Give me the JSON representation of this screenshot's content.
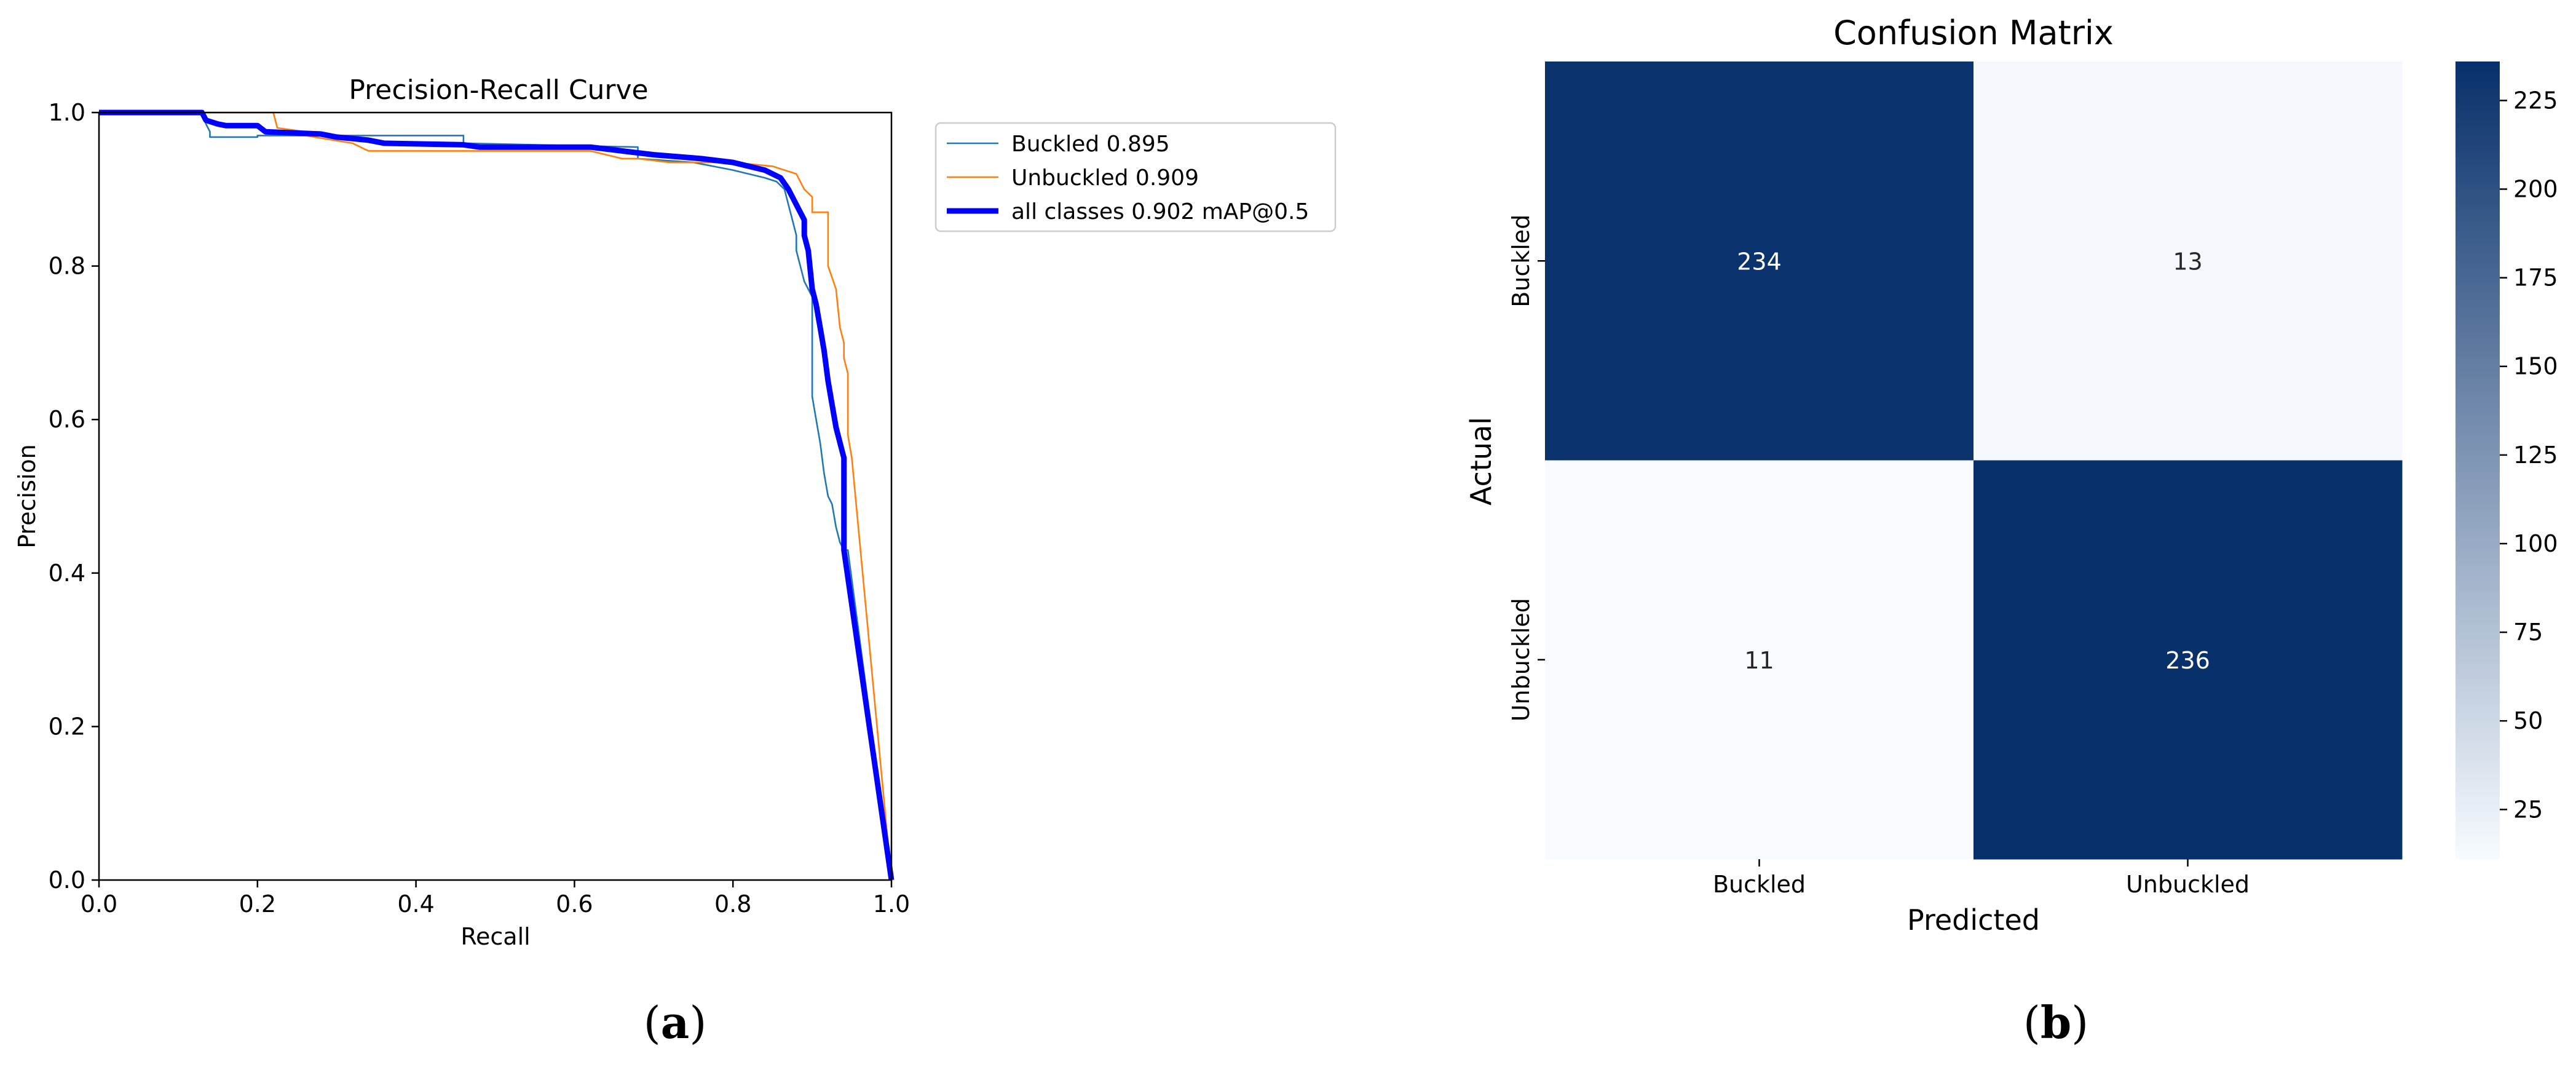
{
  "chart_data": [
    {
      "type": "line",
      "title": "Precision-Recall Curve",
      "xlabel": "Recall",
      "ylabel": "Precision",
      "xlim": [
        0,
        1
      ],
      "ylim": [
        0,
        1
      ],
      "xticks": [
        "0.0",
        "0.2",
        "0.4",
        "0.6",
        "0.8",
        "1.0"
      ],
      "yticks": [
        "0.0",
        "0.2",
        "0.4",
        "0.6",
        "0.8",
        "1.0"
      ],
      "grid": false,
      "legend_position": "outside-top-right",
      "series": [
        {
          "name": "Buckled 0.895",
          "color": "#1f77b4",
          "x": [
            0.0,
            0.13,
            0.135,
            0.14,
            0.14,
            0.2,
            0.2,
            0.46,
            0.46,
            0.68,
            0.68,
            0.75,
            0.8,
            0.84,
            0.855,
            0.865,
            0.87,
            0.875,
            0.88,
            0.88,
            0.89,
            0.9,
            0.9,
            0.9,
            0.905,
            0.91,
            0.915,
            0.92,
            0.925,
            0.93,
            0.935,
            0.94,
            0.945,
            1.0
          ],
          "y": [
            1.0,
            1.0,
            0.985,
            0.975,
            0.968,
            0.968,
            0.97,
            0.97,
            0.96,
            0.955,
            0.94,
            0.935,
            0.925,
            0.915,
            0.91,
            0.9,
            0.88,
            0.86,
            0.84,
            0.82,
            0.78,
            0.76,
            0.72,
            0.63,
            0.6,
            0.57,
            0.53,
            0.5,
            0.49,
            0.46,
            0.44,
            0.43,
            0.43,
            0.0
          ]
        },
        {
          "name": "Unbuckled 0.909",
          "color": "#ff7f0e",
          "x": [
            0.0,
            0.22,
            0.225,
            0.26,
            0.26,
            0.32,
            0.34,
            0.5,
            0.62,
            0.66,
            0.68,
            0.72,
            0.8,
            0.85,
            0.88,
            0.89,
            0.9,
            0.9,
            0.92,
            0.92,
            0.93,
            0.935,
            0.94,
            0.94,
            0.945,
            0.945,
            0.95,
            1.0
          ],
          "y": [
            1.0,
            1.0,
            0.98,
            0.975,
            0.97,
            0.96,
            0.95,
            0.95,
            0.95,
            0.94,
            0.94,
            0.935,
            0.935,
            0.93,
            0.92,
            0.9,
            0.89,
            0.87,
            0.87,
            0.8,
            0.77,
            0.72,
            0.7,
            0.68,
            0.66,
            0.58,
            0.55,
            0.0
          ]
        },
        {
          "name": "all classes 0.902 mAP@0.5",
          "color": "#0000ff",
          "x": [
            0.0,
            0.13,
            0.135,
            0.15,
            0.16,
            0.2,
            0.21,
            0.28,
            0.3,
            0.34,
            0.36,
            0.46,
            0.48,
            0.62,
            0.66,
            0.7,
            0.76,
            0.8,
            0.84,
            0.86,
            0.87,
            0.88,
            0.89,
            0.89,
            0.895,
            0.9,
            0.905,
            0.91,
            0.915,
            0.92,
            0.925,
            0.93,
            0.935,
            0.94,
            0.94,
            1.0
          ],
          "y": [
            1.0,
            1.0,
            0.99,
            0.985,
            0.983,
            0.983,
            0.975,
            0.972,
            0.968,
            0.964,
            0.96,
            0.958,
            0.955,
            0.955,
            0.95,
            0.945,
            0.94,
            0.935,
            0.925,
            0.915,
            0.9,
            0.88,
            0.86,
            0.84,
            0.82,
            0.77,
            0.75,
            0.72,
            0.69,
            0.65,
            0.62,
            0.59,
            0.57,
            0.55,
            0.43,
            0.0
          ]
        }
      ]
    },
    {
      "type": "heatmap",
      "title": "Confusion Matrix",
      "xlabel": "Predicted",
      "ylabel": "Actual",
      "x_categories": [
        "Buckled",
        "Unbuckled"
      ],
      "y_categories": [
        "Buckled",
        "Unbuckled"
      ],
      "values": [
        [
          234,
          13
        ],
        [
          11,
          236
        ]
      ],
      "colormap": "Blues",
      "color_low": "#f7fbff",
      "color_high": "#08306b",
      "vmin": 11,
      "vmax": 236,
      "colorbar_ticks": [
        "25",
        "50",
        "75",
        "100",
        "125",
        "150",
        "175",
        "200",
        "225"
      ]
    }
  ],
  "panel_labels": [
    "(a)",
    "(b)"
  ]
}
